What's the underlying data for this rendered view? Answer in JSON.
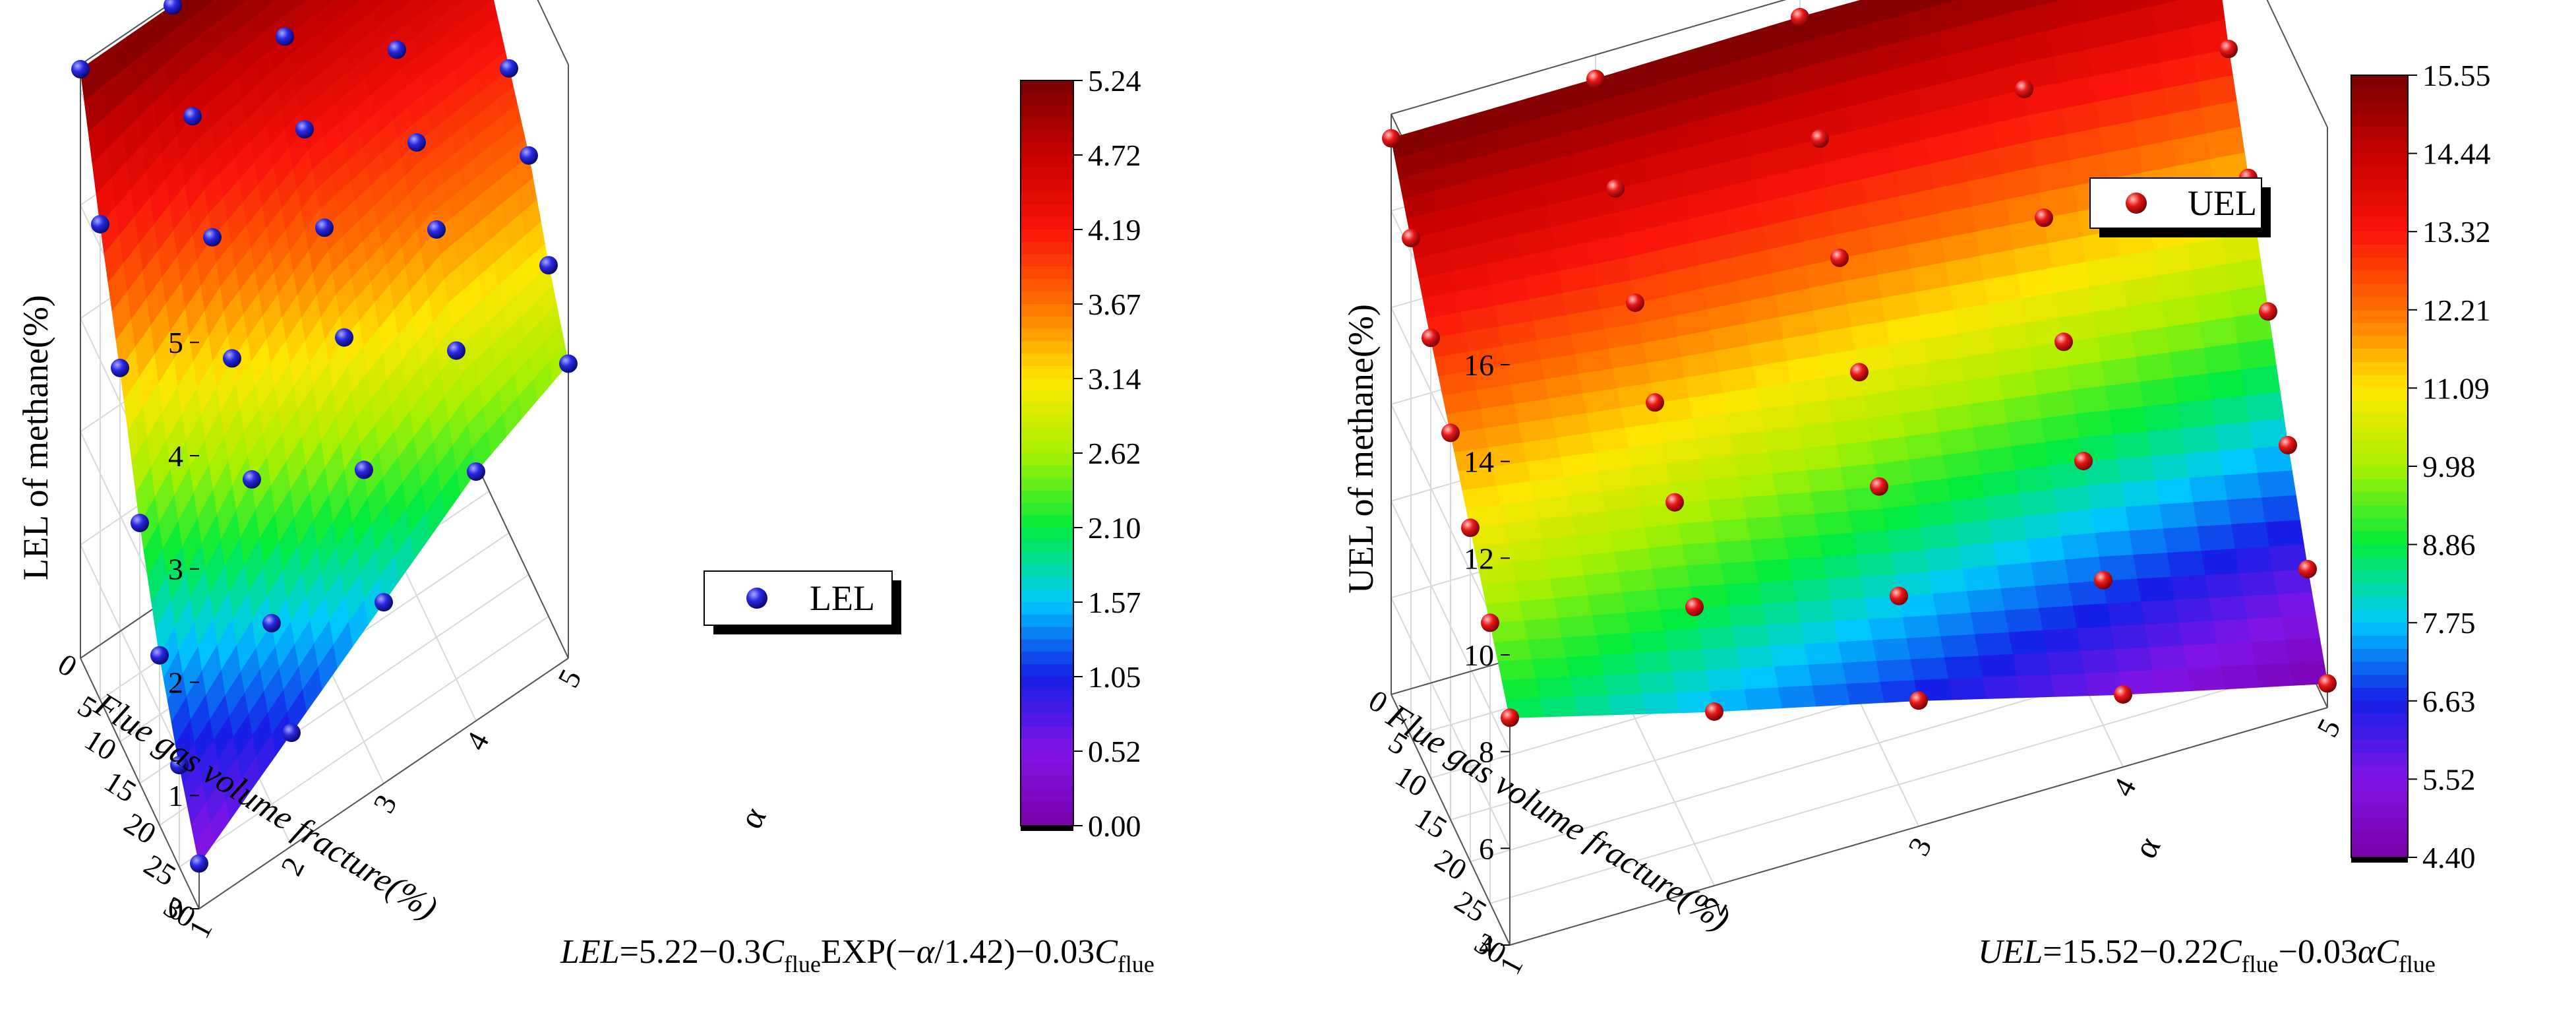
{
  "chart_data": [
    {
      "type": "surface3d",
      "zlabel": "LEL of methane(%)",
      "xlabel": "Flue gas volume fracture(%)",
      "ylabel": "α",
      "xticks": [
        "0",
        "5",
        "10",
        "15",
        "20",
        "25",
        "30"
      ],
      "yticks": [
        "1",
        "2",
        "3",
        "4",
        "5"
      ],
      "zticks": [
        "0",
        "1",
        "2",
        "3",
        "4",
        "5"
      ],
      "xlim": [
        0,
        30
      ],
      "ylim": [
        1,
        5
      ],
      "zlim": [
        0,
        5.24
      ],
      "legend": {
        "label": "LEL",
        "color": "#1b1bd6"
      },
      "formula": {
        "lhs": "LEL",
        "rhs_a": "=5.22−0.3",
        "sub_a": "flue",
        "rhs_b": "EXP(−",
        "alpha": "α",
        "rhs_c": "/1.42)−0.03",
        "sub_c": "flue",
        "cvar": "C"
      },
      "colorbar": {
        "ticks": [
          "5.24",
          "4.72",
          "4.19",
          "3.67",
          "3.14",
          "2.62",
          "2.10",
          "1.57",
          "1.05",
          "0.52",
          "0.00"
        ],
        "min": 0,
        "max": 5.24
      },
      "points": [
        {
          "c": 0,
          "a": 1,
          "v": 5.2
        },
        {
          "c": 0,
          "a": 2,
          "v": 5.21
        },
        {
          "c": 0,
          "a": 3,
          "v": 5.22
        },
        {
          "c": 0,
          "a": 4,
          "v": 5.22
        },
        {
          "c": 0,
          "a": 5,
          "v": 5.22
        },
        {
          "c": 5,
          "a": 1,
          "v": 4.2
        },
        {
          "c": 5,
          "a": 2,
          "v": 4.6
        },
        {
          "c": 5,
          "a": 3,
          "v": 4.75
        },
        {
          "c": 5,
          "a": 4,
          "v": 4.8
        },
        {
          "c": 5,
          "a": 5,
          "v": 4.85
        },
        {
          "c": 10,
          "a": 1,
          "v": 3.3
        },
        {
          "c": 10,
          "a": 2,
          "v": 3.9
        },
        {
          "c": 10,
          "a": 3,
          "v": 4.3
        },
        {
          "c": 10,
          "a": 4,
          "v": 4.45
        },
        {
          "c": 10,
          "a": 5,
          "v": 4.5
        },
        {
          "c": 15,
          "a": 1,
          "v": 2.3
        },
        {
          "c": 15,
          "a": 2,
          "v": 3.2
        },
        {
          "c": 15,
          "a": 3,
          "v": 3.8
        },
        {
          "c": 15,
          "a": 4,
          "v": 4.0
        },
        {
          "c": 15,
          "a": 5,
          "v": 4.1
        },
        {
          "c": 20,
          "a": 1,
          "v": 1.5
        },
        {
          "c": 20,
          "a": 2,
          "v": 2.5
        },
        {
          "c": 20,
          "a": 3,
          "v": 3.2
        },
        {
          "c": 20,
          "a": 4,
          "v": 3.6
        },
        {
          "c": 20,
          "a": 5,
          "v": 3.7
        },
        {
          "c": 25,
          "a": 1,
          "v": 0.9
        },
        {
          "c": 25,
          "a": 2,
          "v": 1.6
        },
        {
          "c": 25,
          "a": 3,
          "v": 2.4
        },
        {
          "c": 25,
          "a": 4,
          "v": 2.9
        },
        {
          "c": 25,
          "a": 5,
          "v": 3.1
        },
        {
          "c": 30,
          "a": 1,
          "v": 0.4
        },
        {
          "c": 30,
          "a": 2,
          "v": 1.0
        },
        {
          "c": 30,
          "a": 3,
          "v": 1.6
        },
        {
          "c": 30,
          "a": 4,
          "v": 2.2
        },
        {
          "c": 30,
          "a": 5,
          "v": 2.6
        }
      ]
    },
    {
      "type": "surface3d",
      "zlabel": "UEL of methane(%)",
      "xlabel": "Flue gas volume fracture(%)",
      "ylabel": "α",
      "xticks": [
        "0",
        "5",
        "10",
        "15",
        "20",
        "25",
        "30"
      ],
      "yticks": [
        "1",
        "2",
        "3",
        "4",
        "5"
      ],
      "zticks": [
        "4",
        "6",
        "8",
        "10",
        "12",
        "14",
        "16"
      ],
      "xlim": [
        0,
        30
      ],
      "ylim": [
        1,
        5
      ],
      "zlim": [
        4,
        16
      ],
      "legend": {
        "label": "UEL",
        "color": "#e01010"
      },
      "formula": {
        "lhs": "UEL",
        "rhs_a": "=15.52−0.22",
        "sub_a": "flue",
        "rhs_b": "−0.03",
        "alpha": "α",
        "rhs_c": "",
        "sub_c": "flue",
        "cvar": "C"
      },
      "colorbar": {
        "ticks": [
          "15.55",
          "14.44",
          "13.32",
          "12.21",
          "11.09",
          "9.98",
          "8.86",
          "7.75",
          "6.63",
          "5.52",
          "4.40"
        ],
        "min": 4.4,
        "max": 15.55
      },
      "points": [
        {
          "c": 0,
          "a": 1,
          "v": 15.5
        },
        {
          "c": 0,
          "a": 2,
          "v": 15.5
        },
        {
          "c": 0,
          "a": 3,
          "v": 15.55
        },
        {
          "c": 0,
          "a": 4,
          "v": 15.5
        },
        {
          "c": 0,
          "a": 5,
          "v": 15.5
        },
        {
          "c": 5,
          "a": 1,
          "v": 14.3
        },
        {
          "c": 5,
          "a": 2,
          "v": 14.1
        },
        {
          "c": 5,
          "a": 3,
          "v": 13.9
        },
        {
          "c": 5,
          "a": 4,
          "v": 13.7
        },
        {
          "c": 5,
          "a": 5,
          "v": 13.3
        },
        {
          "c": 10,
          "a": 1,
          "v": 13.1
        },
        {
          "c": 10,
          "a": 2,
          "v": 12.6
        },
        {
          "c": 10,
          "a": 3,
          "v": 12.3
        },
        {
          "c": 10,
          "a": 4,
          "v": 11.9
        },
        {
          "c": 10,
          "a": 5,
          "v": 11.5
        },
        {
          "c": 15,
          "a": 1,
          "v": 12.0
        },
        {
          "c": 15,
          "a": 2,
          "v": 11.4
        },
        {
          "c": 15,
          "a": 3,
          "v": 10.8
        },
        {
          "c": 15,
          "a": 4,
          "v": 10.2
        },
        {
          "c": 15,
          "a": 5,
          "v": 9.6
        },
        {
          "c": 20,
          "a": 1,
          "v": 10.9
        },
        {
          "c": 20,
          "a": 2,
          "v": 10.2
        },
        {
          "c": 20,
          "a": 3,
          "v": 9.3
        },
        {
          "c": 20,
          "a": 4,
          "v": 8.6
        },
        {
          "c": 20,
          "a": 5,
          "v": 7.7
        },
        {
          "c": 25,
          "a": 1,
          "v": 9.8
        },
        {
          "c": 25,
          "a": 2,
          "v": 8.9
        },
        {
          "c": 25,
          "a": 3,
          "v": 7.9
        },
        {
          "c": 25,
          "a": 4,
          "v": 7.0
        },
        {
          "c": 25,
          "a": 5,
          "v": 6.0
        },
        {
          "c": 30,
          "a": 1,
          "v": 8.7
        },
        {
          "c": 30,
          "a": 2,
          "v": 7.6
        },
        {
          "c": 30,
          "a": 3,
          "v": 6.6
        },
        {
          "c": 30,
          "a": 4,
          "v": 5.5
        },
        {
          "c": 30,
          "a": 5,
          "v": 4.5
        }
      ]
    }
  ]
}
